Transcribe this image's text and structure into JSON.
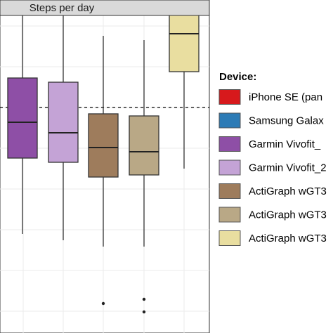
{
  "chart_data": {
    "type": "box",
    "facet_title": "Steps per day",
    "legend_title": "Device:",
    "legend_placement": "right",
    "grid": true,
    "reference_line": {
      "style": "dashed",
      "y": 0.0
    },
    "ylim": [
      -1.0,
      1.0
    ],
    "series": [
      {
        "name": "iPhone SE (pan",
        "color": "#d7191c",
        "box": null
      },
      {
        "name": "Samsung Galax",
        "color": "#2c7bb6",
        "box": null
      },
      {
        "name": "Garmin Vivofit_",
        "color": "#8e4fa6",
        "box": {
          "whisker_low": -0.6,
          "q1": -0.24,
          "median": -0.07,
          "q3": 0.14,
          "whisker_high": 0.44,
          "outliers": []
        }
      },
      {
        "name": "Garmin Vivofit_2",
        "color": "#c4a3d6",
        "box": {
          "whisker_low": -0.63,
          "q1": -0.26,
          "median": -0.12,
          "q3": 0.12,
          "whisker_high": 0.46,
          "outliers": []
        }
      },
      {
        "name": "ActiGraph wGT3",
        "color": "#9e7c5c",
        "box": {
          "whisker_low": -0.66,
          "q1": -0.33,
          "median": -0.19,
          "q3": -0.03,
          "whisker_high": 0.34,
          "outliers": [
            -0.93
          ]
        }
      },
      {
        "name": "ActiGraph wGT3",
        "color": "#b9a886",
        "box": {
          "whisker_low": -0.66,
          "q1": -0.32,
          "median": -0.21,
          "q3": -0.04,
          "whisker_high": 0.32,
          "outliers": [
            -0.91,
            -0.97
          ]
        }
      },
      {
        "name": "ActiGraph wGT3",
        "color": "#e9dea0",
        "box": {
          "whisker_low": -0.29,
          "q1": 0.17,
          "median": 0.35,
          "q3": 0.49,
          "whisker_high": 0.78,
          "outliers": []
        }
      }
    ]
  }
}
